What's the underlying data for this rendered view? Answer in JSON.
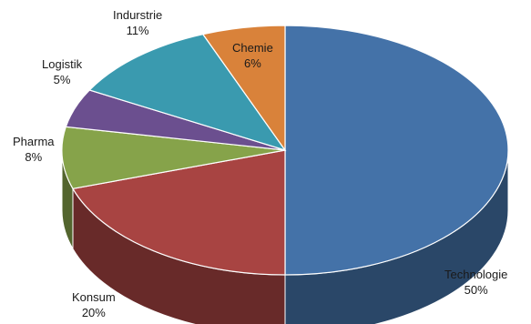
{
  "chart_data": {
    "type": "pie",
    "style": "3d",
    "title": "",
    "slices": [
      {
        "label": "Technologie",
        "value": 50,
        "display": "50%",
        "color": "#4472a8"
      },
      {
        "label": "Konsum",
        "value": 20,
        "display": "20%",
        "color": "#a84442"
      },
      {
        "label": "Pharma",
        "value": 8,
        "display": "8%",
        "color": "#86a34a"
      },
      {
        "label": "Logistik",
        "value": 5,
        "display": "5%",
        "color": "#6b4f8f"
      },
      {
        "label": "Indurstrie",
        "value": 11,
        "display": "11%",
        "color": "#3a9aaf"
      },
      {
        "label": "Chemie",
        "value": 6,
        "display": "6%",
        "color": "#d9823a"
      }
    ],
    "legend": "none",
    "data_labels": "category-and-percent"
  }
}
